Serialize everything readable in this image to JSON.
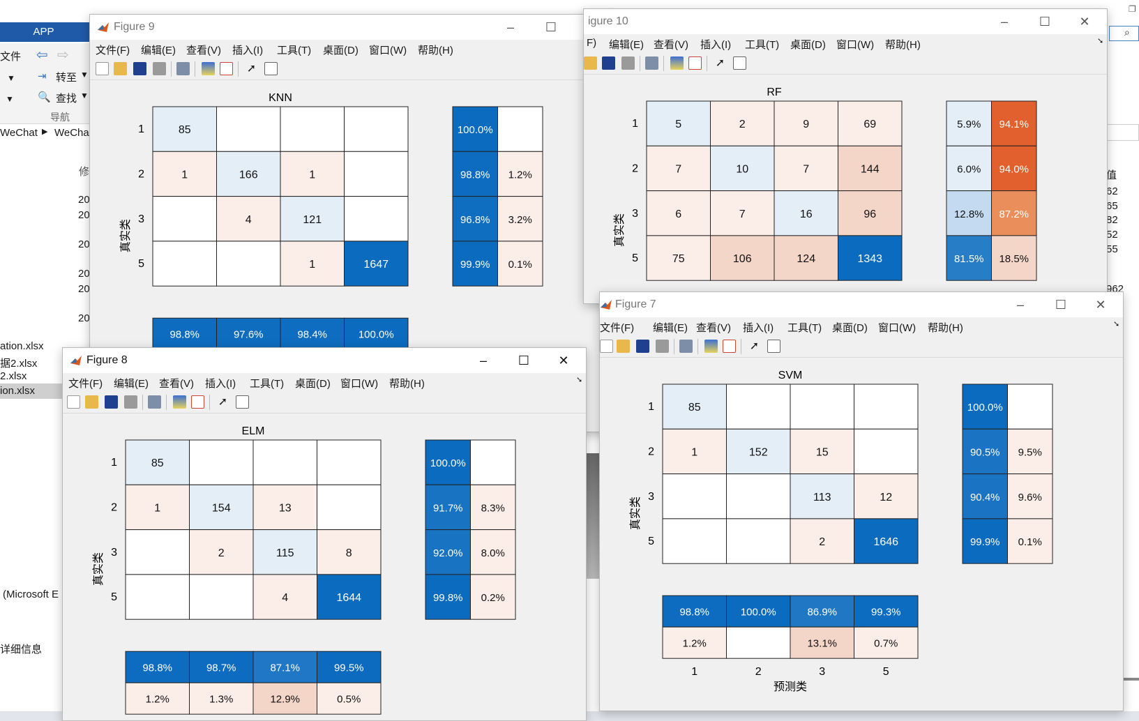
{
  "background": {
    "app_tab": "APP",
    "toolbar": [
      "文件",
      "转至",
      "查找"
    ],
    "toolbar_side_labels": [
      "",
      "",
      ""
    ],
    "nav_label": "导航",
    "path": [
      "WeChat",
      "WeCha"
    ],
    "col_header": "修",
    "dates": [
      "20",
      "20",
      "20",
      "20",
      "20",
      "20"
    ],
    "files": [
      "ation.xlsx",
      "据2.xlsx",
      "2.xlsx",
      "ion.xlsx"
    ],
    "selected_file_index": 3,
    "type_label": "(Microsoft E",
    "detail_label": "详细信息",
    "right_header": "值",
    "right_values": [
      "62",
      "65",
      "82",
      "52",
      "55"
    ],
    "right_value_bottom": "962"
  },
  "colors": {
    "blue_dark": "#0b6bbf",
    "blue_light": "#e4eef7",
    "peach_light": "#fbeee8",
    "peach_mid": "#f4d6c9",
    "orange_dark": "#e1602d",
    "orange_mid": "#ea8e5c"
  },
  "windows": [
    {
      "id": "fig9",
      "title": "Figure 9",
      "menu": [
        "文件(F)",
        "编辑(E)",
        "查看(V)",
        "插入(I)",
        "工具(T)",
        "桌面(D)",
        "窗口(W)",
        "帮助(H)"
      ],
      "chart_data": {
        "type": "heatmap",
        "title": "KNN",
        "ylabel": "真实类",
        "xlabel": "",
        "classes": [
          "1",
          "2",
          "3",
          "5"
        ],
        "matrix": [
          [
            85,
            null,
            null,
            null
          ],
          [
            1,
            166,
            1,
            null
          ],
          [
            null,
            4,
            121,
            null
          ],
          [
            null,
            null,
            1,
            1647
          ]
        ],
        "row_summary": [
          [
            "100.0%",
            ""
          ],
          [
            "98.8%",
            "1.2%"
          ],
          [
            "96.8%",
            "3.2%"
          ],
          [
            "99.9%",
            "0.1%"
          ]
        ],
        "col_summary": [
          [
            "98.8%",
            "97.6%",
            "98.4%",
            "100.0%"
          ]
        ]
      }
    },
    {
      "id": "fig10",
      "title": "igure 10",
      "menu": [
        "F)",
        "编辑(E)",
        "查看(V)",
        "插入(I)",
        "工具(T)",
        "桌面(D)",
        "窗口(W)",
        "帮助(H)"
      ],
      "chart_data": {
        "type": "heatmap",
        "title": "RF",
        "ylabel": "真实类",
        "xlabel": "",
        "classes": [
          "1",
          "2",
          "3",
          "5"
        ],
        "matrix": [
          [
            5,
            2,
            9,
            69
          ],
          [
            7,
            10,
            7,
            144
          ],
          [
            6,
            7,
            16,
            96
          ],
          [
            75,
            106,
            124,
            1343
          ]
        ],
        "row_summary": [
          [
            "5.9%",
            "94.1%"
          ],
          [
            "6.0%",
            "94.0%"
          ],
          [
            "12.8%",
            "87.2%"
          ],
          [
            "81.5%",
            "18.5%"
          ]
        ],
        "col_summary": []
      }
    },
    {
      "id": "fig7",
      "title": "Figure 7",
      "menu": [
        "文件(F)",
        "编辑(E)",
        "查看(V)",
        "插入(I)",
        "工具(T)",
        "桌面(D)",
        "窗口(W)",
        "帮助(H)"
      ],
      "chart_data": {
        "type": "heatmap",
        "title": "SVM",
        "ylabel": "真实类",
        "xlabel": "预测类",
        "classes": [
          "1",
          "2",
          "3",
          "5"
        ],
        "matrix": [
          [
            85,
            null,
            null,
            null
          ],
          [
            1,
            152,
            15,
            null
          ],
          [
            null,
            null,
            113,
            12
          ],
          [
            null,
            null,
            2,
            1646
          ]
        ],
        "row_summary": [
          [
            "100.0%",
            ""
          ],
          [
            "90.5%",
            "9.5%"
          ],
          [
            "90.4%",
            "9.6%"
          ],
          [
            "99.9%",
            "0.1%"
          ]
        ],
        "col_summary": [
          [
            "98.8%",
            "100.0%",
            "86.9%",
            "99.3%"
          ],
          [
            "1.2%",
            "",
            "13.1%",
            "0.7%"
          ]
        ]
      }
    },
    {
      "id": "fig8",
      "title": "Figure 8",
      "menu": [
        "文件(F)",
        "编辑(E)",
        "查看(V)",
        "插入(I)",
        "工具(T)",
        "桌面(D)",
        "窗口(W)",
        "帮助(H)"
      ],
      "chart_data": {
        "type": "heatmap",
        "title": "ELM",
        "ylabel": "真实类",
        "xlabel": "",
        "classes": [
          "1",
          "2",
          "3",
          "5"
        ],
        "matrix": [
          [
            85,
            null,
            null,
            null
          ],
          [
            1,
            154,
            13,
            null
          ],
          [
            null,
            2,
            115,
            8
          ],
          [
            null,
            null,
            4,
            1644
          ]
        ],
        "row_summary": [
          [
            "100.0%",
            ""
          ],
          [
            "91.7%",
            "8.3%"
          ],
          [
            "92.0%",
            "8.0%"
          ],
          [
            "99.8%",
            "0.2%"
          ]
        ],
        "col_summary": [
          [
            "98.8%",
            "98.7%",
            "87.1%",
            "99.5%"
          ],
          [
            "1.2%",
            "1.3%",
            "12.9%",
            "0.5%"
          ]
        ]
      }
    }
  ]
}
